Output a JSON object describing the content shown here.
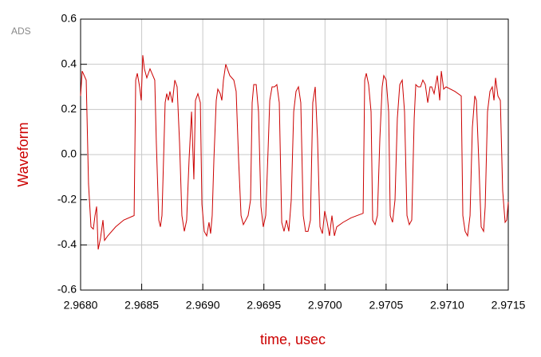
{
  "chart_data": {
    "type": "line",
    "watermark": "ADS",
    "x_label": "time, usec",
    "y_label": "Waveform",
    "color": "#cc0000",
    "grid": true,
    "xlim": [
      2.968,
      2.9715
    ],
    "ylim": [
      -0.6,
      0.6
    ],
    "xticks": [
      {
        "value": 2.968,
        "label": "2.9680"
      },
      {
        "value": 2.9685,
        "label": "2.9685"
      },
      {
        "value": 2.969,
        "label": "2.9690"
      },
      {
        "value": 2.9695,
        "label": "2.9695"
      },
      {
        "value": 2.97,
        "label": "2.9700"
      },
      {
        "value": 2.9705,
        "label": "2.9705"
      },
      {
        "value": 2.971,
        "label": "2.9710"
      },
      {
        "value": 2.9715,
        "label": "2.9715"
      }
    ],
    "yticks": [
      -0.6,
      -0.4,
      -0.2,
      {
        "value": 0,
        "label": "0.0"
      },
      0.2,
      0.4,
      0.6
    ],
    "x": [
      2.968,
      2.968013,
      2.968046,
      2.968065,
      2.968085,
      2.968104,
      2.968118,
      2.968131,
      2.968144,
      2.968163,
      2.968183,
      2.968196,
      2.968222,
      2.968287,
      2.968353,
      2.968438,
      2.968451,
      2.968464,
      2.968483,
      2.968496,
      2.968509,
      2.968522,
      2.968542,
      2.968568,
      2.968607,
      2.96862,
      2.96864,
      2.968653,
      2.968666,
      2.968679,
      2.968692,
      2.968705,
      2.968718,
      2.968731,
      2.968751,
      2.968771,
      2.96879,
      2.96881,
      2.968829,
      2.968849,
      2.968868,
      2.968888,
      2.968908,
      2.968927,
      2.96894,
      2.96896,
      2.96898,
      2.968993,
      2.969012,
      2.969032,
      2.969051,
      2.969064,
      2.969077,
      2.969091,
      2.96911,
      2.969123,
      2.969143,
      2.969156,
      2.969169,
      2.969188,
      2.969221,
      2.969254,
      2.969273,
      2.969293,
      2.969313,
      2.969332,
      2.969352,
      2.969371,
      2.969391,
      2.969404,
      2.969417,
      2.969437,
      2.969456,
      2.969476,
      2.969495,
      2.969515,
      2.969535,
      2.969548,
      2.969567,
      2.969587,
      2.969606,
      2.969626,
      2.969646,
      2.969665,
      2.969685,
      2.969704,
      2.969724,
      2.969744,
      2.969763,
      2.969783,
      2.969802,
      2.969822,
      2.969841,
      2.969861,
      2.969881,
      2.9699,
      2.96992,
      2.969939,
      2.969959,
      2.969979,
      2.969998,
      2.970018,
      2.970037,
      2.970057,
      2.970077,
      2.970096,
      2.970148,
      2.970214,
      2.970312,
      2.970325,
      2.970338,
      2.970357,
      2.970377,
      2.97039,
      2.97041,
      2.970429,
      2.970449,
      2.970468,
      2.970481,
      2.970501,
      2.970521,
      2.970534,
      2.970553,
      2.970573,
      2.970592,
      2.970612,
      2.970632,
      2.970651,
      2.970671,
      2.97069,
      2.97071,
      2.97073,
      2.970743,
      2.970762,
      2.970782,
      2.970801,
      2.970821,
      2.970841,
      2.97086,
      2.970873,
      2.970893,
      2.970919,
      2.970939,
      2.970952,
      2.970971,
      2.970991,
      2.971063,
      2.971115,
      2.971128,
      2.971147,
      2.971167,
      2.971187,
      2.971206,
      2.971226,
      2.971239,
      2.971258,
      2.971278,
      2.971298,
      2.971311,
      2.97133,
      2.97135,
      2.971369,
      2.971383,
      2.971396,
      2.971415,
      2.971435,
      2.971454,
      2.971474,
      2.971487,
      2.9715
    ],
    "values": [
      0.26,
      0.37,
      0.33,
      -0.13,
      -0.32,
      -0.33,
      -0.27,
      -0.23,
      -0.42,
      -0.37,
      -0.29,
      -0.38,
      -0.36,
      -0.32,
      -0.29,
      -0.27,
      0.33,
      0.36,
      0.3,
      0.24,
      0.44,
      0.38,
      0.34,
      0.38,
      0.33,
      0.05,
      -0.29,
      -0.32,
      -0.27,
      -0.02,
      0.23,
      0.27,
      0.24,
      0.28,
      0.23,
      0.33,
      0.3,
      0.05,
      -0.27,
      -0.34,
      -0.29,
      -0.02,
      0.19,
      -0.11,
      0.24,
      0.27,
      0.23,
      -0.22,
      -0.34,
      -0.36,
      -0.3,
      -0.35,
      -0.27,
      -0.02,
      0.24,
      0.29,
      0.27,
      0.24,
      0.33,
      0.4,
      0.35,
      0.33,
      0.28,
      -0.02,
      -0.27,
      -0.31,
      -0.29,
      -0.27,
      -0.2,
      0.23,
      0.31,
      0.31,
      0.19,
      -0.23,
      -0.32,
      -0.27,
      0.03,
      0.24,
      0.3,
      0.3,
      0.31,
      0.23,
      -0.3,
      -0.34,
      -0.29,
      -0.34,
      -0.2,
      0.19,
      0.28,
      0.3,
      0.23,
      -0.27,
      -0.34,
      -0.34,
      -0.29,
      0.23,
      0.3,
      0.07,
      -0.32,
      -0.35,
      -0.25,
      -0.3,
      -0.36,
      -0.27,
      -0.36,
      -0.32,
      -0.3,
      -0.28,
      -0.26,
      0.33,
      0.36,
      0.31,
      0.19,
      -0.29,
      -0.31,
      -0.27,
      0.07,
      0.3,
      0.35,
      0.33,
      0.19,
      -0.27,
      -0.3,
      -0.2,
      0.16,
      0.31,
      0.33,
      0.19,
      -0.27,
      -0.31,
      -0.29,
      0.16,
      0.31,
      0.3,
      0.3,
      0.33,
      0.31,
      0.23,
      0.3,
      0.3,
      0.27,
      0.35,
      0.24,
      0.37,
      0.29,
      0.3,
      0.28,
      0.26,
      -0.27,
      -0.34,
      -0.36,
      -0.27,
      0.12,
      0.26,
      0.24,
      -0.02,
      -0.32,
      -0.34,
      -0.23,
      0.19,
      0.28,
      0.3,
      0.24,
      0.34,
      0.26,
      0.24,
      -0.16,
      -0.3,
      -0.29,
      -0.21
    ]
  }
}
